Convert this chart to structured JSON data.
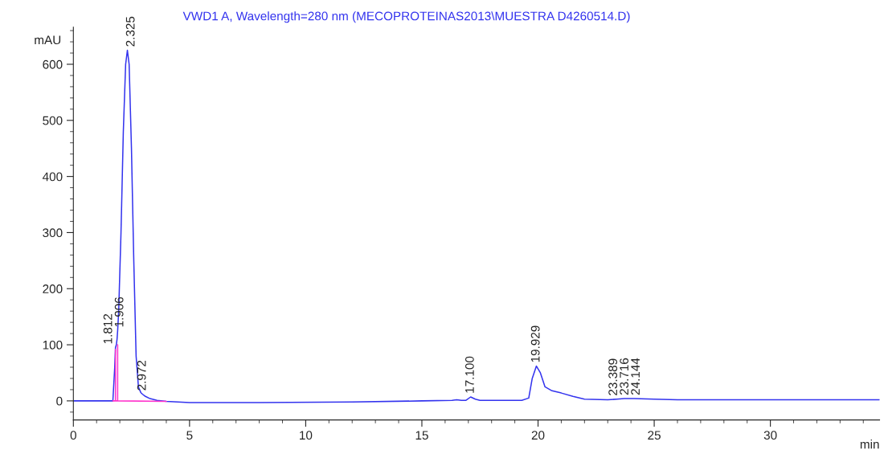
{
  "chart_data": {
    "type": "line",
    "title": "VWD1 A, Wavelength=280 nm (MECOPROTEINAS2013\\MUESTRA D4260514.D)",
    "xlabel": "min",
    "ylabel": "mAU",
    "series": [
      {
        "color": "#3333ee",
        "x": [
          0,
          1.7,
          1.78,
          1.812,
          1.85,
          1.88,
          1.906,
          1.95,
          2.05,
          2.15,
          2.25,
          2.325,
          2.4,
          2.5,
          2.6,
          2.7,
          2.8,
          2.9,
          2.972,
          3.1,
          3.3,
          3.6,
          4.0,
          5,
          8,
          12,
          15,
          16.3,
          16.5,
          16.7,
          16.9,
          17.1,
          17.3,
          17.5,
          19.3,
          19.6,
          19.75,
          19.929,
          20.1,
          20.3,
          20.6,
          21,
          21.5,
          22,
          23,
          23.389,
          23.716,
          24.144,
          25,
          26,
          30,
          34.7
        ],
        "values": [
          0,
          0,
          60,
          95,
          100,
          110,
          125,
          160,
          300,
          480,
          600,
          625,
          600,
          450,
          250,
          80,
          25,
          15,
          12,
          8,
          4,
          1,
          -1,
          -3,
          -3,
          -2,
          0,
          1,
          2,
          1,
          1,
          7,
          3,
          1,
          1,
          5,
          40,
          62,
          50,
          25,
          18,
          14,
          8,
          3,
          2,
          3,
          4,
          4,
          3,
          2,
          2,
          2
        ]
      },
      {
        "color": "#ff33cc",
        "x": [
          1.7,
          1.812,
          1.812,
          1.812,
          1.906,
          1.906,
          1.906,
          4.0
        ],
        "values": [
          0,
          0,
          92,
          0,
          0,
          100,
          0,
          -1
        ]
      }
    ],
    "annotations": [
      {
        "text": "1.812",
        "x": 1.812,
        "y": 95
      },
      {
        "text": "1.906",
        "x": 1.906,
        "y": 125
      },
      {
        "text": "2.325",
        "x": 2.325,
        "y": 625
      },
      {
        "text": "2.972",
        "x": 2.972,
        "y": 12
      },
      {
        "text": "17.100",
        "x": 17.1,
        "y": 7
      },
      {
        "text": "19.929",
        "x": 19.929,
        "y": 62
      },
      {
        "text": "23.389",
        "x": 23.389,
        "y": 3
      },
      {
        "text": "23.716",
        "x": 23.716,
        "y": 4
      },
      {
        "text": "24.144",
        "x": 24.144,
        "y": 4
      }
    ],
    "xlim": [
      0,
      34.7
    ],
    "xticks": [
      0,
      5,
      10,
      15,
      20,
      25,
      30
    ],
    "ylim": [
      -34,
      666
    ],
    "yticks": [
      0,
      100,
      200,
      300,
      400,
      500,
      600
    ],
    "grid": false,
    "legend": false
  }
}
